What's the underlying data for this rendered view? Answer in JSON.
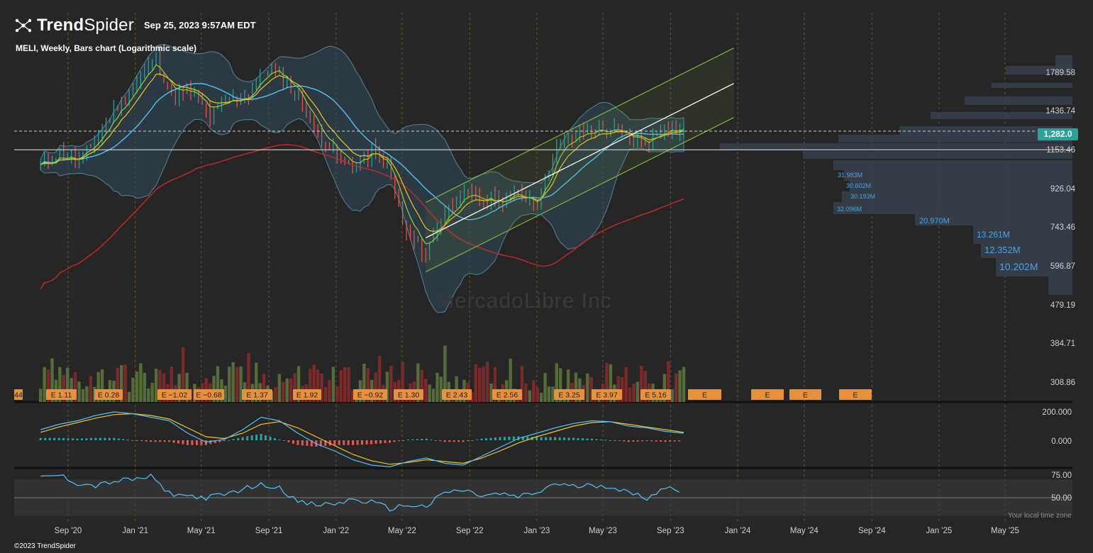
{
  "brand": {
    "name_bold": "Trend",
    "name_light": "Spider",
    "icon": "trendspider-logo-icon"
  },
  "timestamp": "Sep 25, 2023 9:57AM EDT",
  "chart_title": "MELI, Weekly, Bars chart (Logarithmic scale)",
  "watermark": "MercadoLibre Inc",
  "copyright": "©2023 TrendSpider",
  "timezone_note": "Your local time zone",
  "last_price_badge": "1,282.0",
  "colors": {
    "background": "#262626",
    "bull": "#26a69a",
    "bear": "#ef5350",
    "ema_fast": "#9acd32",
    "ema_slow": "#f5c518",
    "sma_mid": "#4fc3f7",
    "sma_long": "#c62828",
    "channel": "#7cb342",
    "earnings": "#e8913a",
    "volume_profile": "#36414d",
    "volume_profile_text": "#4aa3df"
  },
  "chart_data": [
    {
      "type": "candlestick",
      "panel": "price",
      "title": "MELI, Weekly, Bars chart (Logarithmic scale)",
      "y_scale": "log",
      "x_tick_labels": [
        "Sep '20",
        "Jan '21",
        "May '21",
        "Sep '21",
        "Jan '22",
        "May '22",
        "Sep '22",
        "Jan '23",
        "May '23",
        "Sep '23",
        "Jan '24",
        "May '24",
        "Sep '24",
        "Jan '25",
        "May '25"
      ],
      "y_tick_labels": [
        "1789.58",
        "1436.74",
        "1153.46",
        "926.04",
        "743.46",
        "596.87",
        "479.19",
        "384.71",
        "308.86"
      ],
      "ylim": [
        290,
        1950
      ],
      "price_path": [
        {
          "date": "2020-07-13",
          "close": 1050
        },
        {
          "date": "2020-08-17",
          "close": 1130
        },
        {
          "date": "2020-09-21",
          "close": 1080
        },
        {
          "date": "2020-10-26",
          "close": 1250
        },
        {
          "date": "2020-11-30",
          "close": 1480
        },
        {
          "date": "2021-01-11",
          "close": 1750
        },
        {
          "date": "2021-02-08",
          "close": 1950
        },
        {
          "date": "2021-03-08",
          "close": 1560
        },
        {
          "date": "2021-04-12",
          "close": 1600
        },
        {
          "date": "2021-05-17",
          "close": 1400
        },
        {
          "date": "2021-06-21",
          "close": 1530
        },
        {
          "date": "2021-07-26",
          "close": 1580
        },
        {
          "date": "2021-08-30",
          "close": 1850
        },
        {
          "date": "2021-09-20",
          "close": 1780
        },
        {
          "date": "2021-10-25",
          "close": 1560
        },
        {
          "date": "2021-11-22",
          "close": 1300
        },
        {
          "date": "2022-01-10",
          "close": 1080
        },
        {
          "date": "2022-02-07",
          "close": 1050
        },
        {
          "date": "2022-03-07",
          "close": 1150
        },
        {
          "date": "2022-04-04",
          "close": 1050
        },
        {
          "date": "2022-05-09",
          "close": 710
        },
        {
          "date": "2022-06-13",
          "close": 640
        },
        {
          "date": "2022-07-11",
          "close": 790
        },
        {
          "date": "2022-08-15",
          "close": 900
        },
        {
          "date": "2022-09-19",
          "close": 870
        },
        {
          "date": "2022-10-24",
          "close": 860
        },
        {
          "date": "2022-11-28",
          "close": 900
        },
        {
          "date": "2023-01-02",
          "close": 860
        },
        {
          "date": "2023-02-06",
          "close": 1180
        },
        {
          "date": "2023-03-13",
          "close": 1250
        },
        {
          "date": "2023-04-17",
          "close": 1300
        },
        {
          "date": "2023-05-22",
          "close": 1280
        },
        {
          "date": "2023-06-26",
          "close": 1220
        },
        {
          "date": "2023-07-24",
          "close": 1200
        },
        {
          "date": "2023-08-21",
          "close": 1330
        },
        {
          "date": "2023-09-25",
          "close": 1282
        }
      ],
      "horizontal_lines": [
        1282.0,
        1153.46
      ],
      "regression_channel": {
        "start": {
          "date": "2022-06-13",
          "mid": 700
        },
        "end": {
          "date": "2023-12-25",
          "mid": 1680
        }
      },
      "volume_profile_labels": [
        "31.983M",
        "30.602M",
        "30.193M",
        "32.096M",
        "20.970M",
        "13.261M",
        "12.352M",
        "10.202M"
      ],
      "earnings_labels": [
        "44",
        "E 1.11",
        "E 0.28",
        "E −1.02",
        "E −0.68",
        "E 1.37",
        "E 1.92",
        "E −0.92",
        "E 1.30",
        "E 2.43",
        "E 2.56",
        "E 3.25",
        "E 3.97",
        "E 5.16",
        "E",
        "E",
        "E",
        "E"
      ]
    },
    {
      "type": "line",
      "panel": "macd",
      "y_tick_labels": [
        "200.000",
        "0.000"
      ],
      "series": [
        {
          "values": [
            60,
            90,
            110,
            140,
            160,
            150,
            130,
            110,
            40,
            -10,
            5,
            60,
            130,
            110,
            40,
            -20,
            -60,
            -110,
            -140,
            -150,
            -120,
            -100,
            -130,
            -140,
            -90,
            -40,
            10,
            40,
            70,
            95,
            110,
            105,
            80,
            70,
            50,
            40
          ]
        },
        {
          "values": [
            45,
            75,
            100,
            125,
            145,
            150,
            140,
            120,
            70,
            20,
            10,
            40,
            90,
            105,
            70,
            20,
            -30,
            -80,
            -115,
            -135,
            -125,
            -110,
            -120,
            -130,
            -100,
            -60,
            -15,
            20,
            50,
            80,
            100,
            105,
            90,
            75,
            60,
            45
          ]
        }
      ]
    },
    {
      "type": "line",
      "panel": "rsi",
      "y_tick_labels": [
        "75.00",
        "50.00"
      ],
      "series": [
        {
          "values": [
            72,
            75,
            66,
            63,
            68,
            70,
            73,
            55,
            52,
            50,
            53,
            60,
            64,
            62,
            45,
            42,
            43,
            48,
            45,
            38,
            42,
            40,
            56,
            58,
            52,
            54,
            51,
            55,
            66,
            62,
            64,
            63,
            55,
            50,
            62,
            56
          ]
        }
      ]
    }
  ]
}
